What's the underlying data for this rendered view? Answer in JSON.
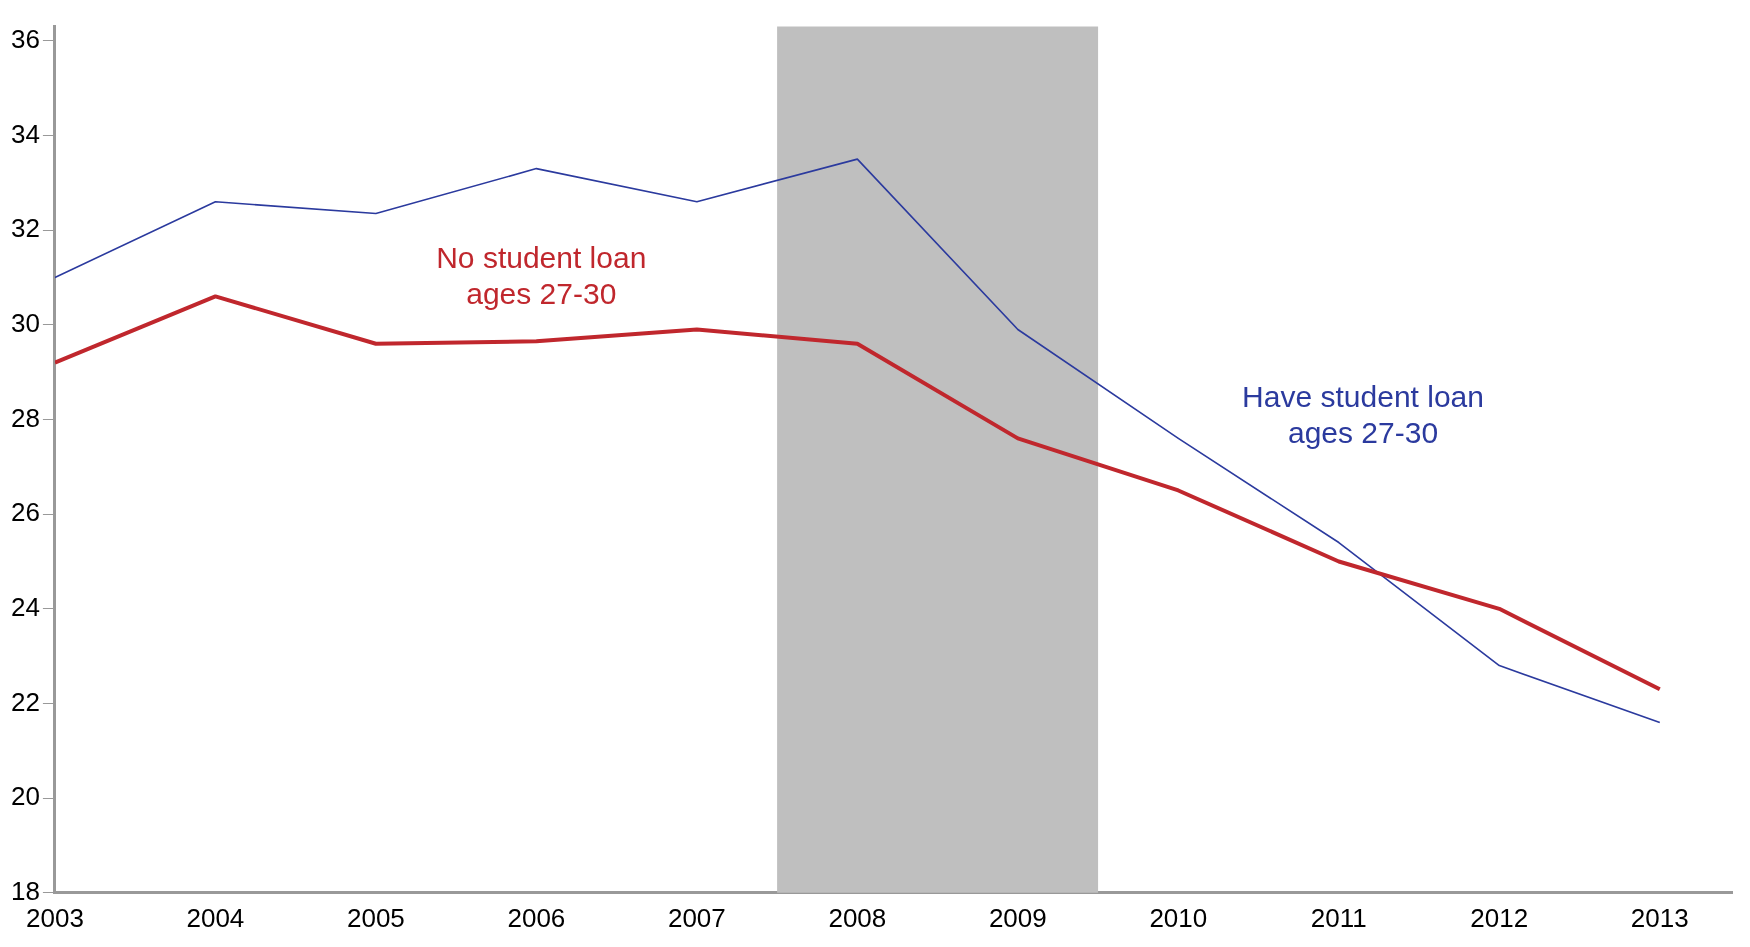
{
  "chart_data": {
    "type": "line",
    "x": [
      2003,
      2004,
      2005,
      2006,
      2007,
      2008,
      2009,
      2010,
      2011,
      2012,
      2013
    ],
    "series": [
      {
        "color": "#2b3a9e",
        "values": [
          31.0,
          32.6,
          32.35,
          33.3,
          32.6,
          33.5,
          29.9,
          27.6,
          25.4,
          22.8,
          21.6
        ]
      },
      {
        "color": "#c0272d",
        "values": [
          29.2,
          30.6,
          29.6,
          29.65,
          29.9,
          29.6,
          27.6,
          26.5,
          25.0,
          24.0,
          22.3
        ]
      }
    ],
    "xlim": [
      2003,
      2013.45
    ],
    "xticks": [
      2003,
      2004,
      2005,
      2006,
      2007,
      2008,
      2009,
      2010,
      2011,
      2012,
      2013
    ],
    "ylim": [
      18,
      36.3
    ],
    "yticks": [
      18,
      20,
      22,
      24,
      26,
      28,
      30,
      32,
      34,
      36
    ],
    "bands": [
      {
        "axis": "x",
        "from": 2007.5,
        "to": 2009.5,
        "color": "#bfbfbf"
      }
    ],
    "annotations": [
      "Have student loan\nages 27-30",
      "No student loan\nages 27-30"
    ],
    "grid": false,
    "legend": false,
    "marker": "none",
    "line_style": "solid"
  }
}
